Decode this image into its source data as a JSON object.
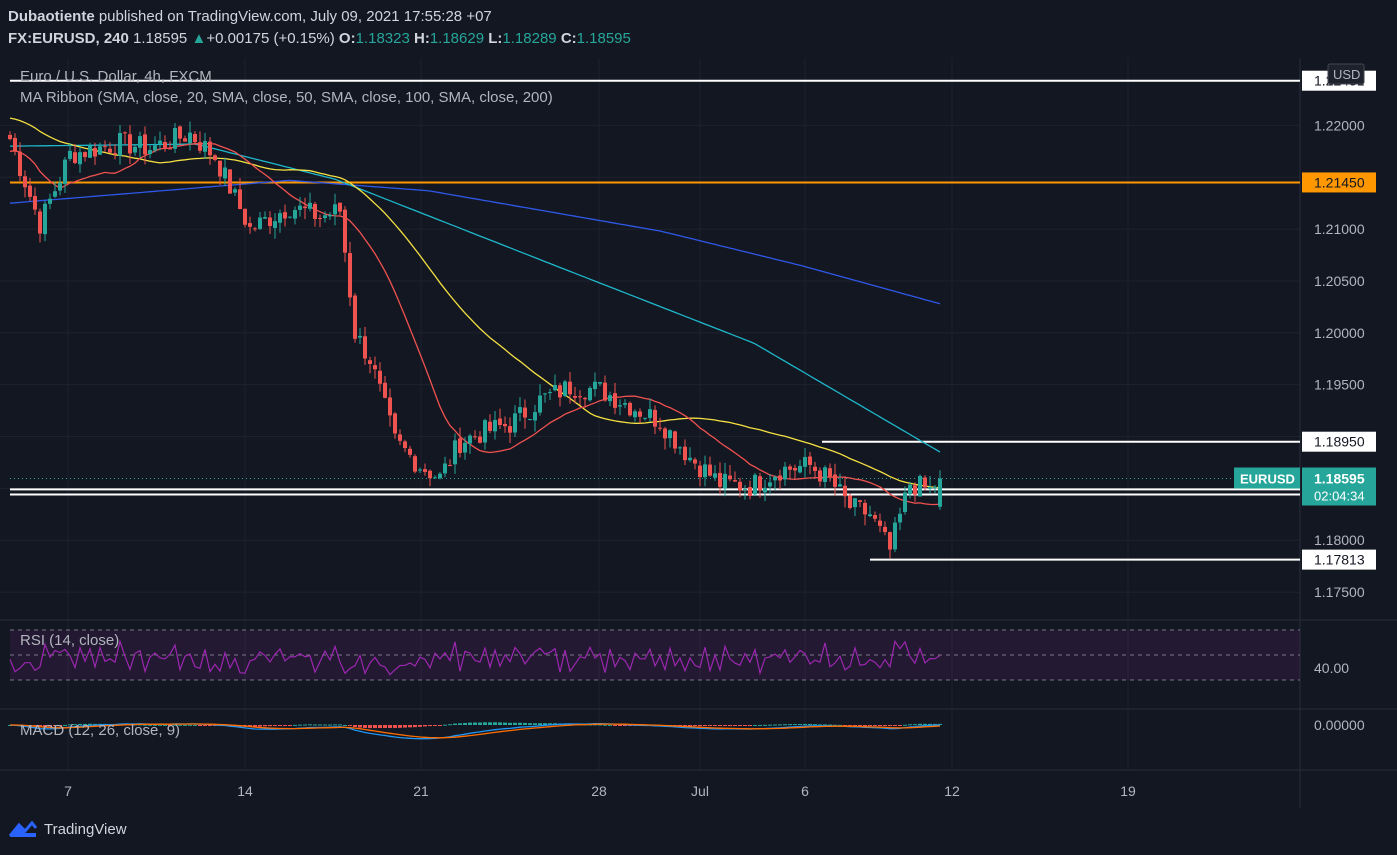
{
  "header": {
    "author": "Dubaotiente",
    "published": "published on TradingView.com, July 09, 2021 17:55:28 +07",
    "symbol": "FX:EURUSD, 240",
    "last": "1.18595",
    "change_arrow": "▲",
    "change": "+0.00175 (+0.15%)",
    "o_label": "O:",
    "o_value": "1.18323",
    "h_label": "H:",
    "h_value": "1.18629",
    "l_label": "L:",
    "l_value": "1.18289",
    "c_label": "C:",
    "c_value": "1.18595"
  },
  "legend": {
    "series_title": "Euro / U.S. Dollar, 4h, FXCM",
    "ma_ribbon": "MA Ribbon (SMA, close, 20, SMA, close, 50, SMA, close, 100, SMA, close, 200)",
    "rsi": "RSI (14, close)",
    "macd": "MACD (12, 26, close, 9)"
  },
  "price_axis": {
    "currency": "USD",
    "ticks": [
      "1.22000",
      "1.21000",
      "1.20500",
      "1.20000",
      "1.19500",
      "1.18000",
      "1.17500"
    ],
    "top_line_label": "1.22431"
  },
  "levels": [
    {
      "value": 1.22431,
      "label": "1.22431",
      "color": "#ffffff"
    },
    {
      "value": 1.2145,
      "label": "1.21450",
      "color": "#ff9800"
    },
    {
      "value": 1.1895,
      "label": "1.18950",
      "color": "#ffffff"
    },
    {
      "value": 1.1849,
      "label": "",
      "color": "#ffffff"
    },
    {
      "value": 1.18441,
      "label": "1.18441",
      "color": "#ffffff"
    },
    {
      "value": 1.17813,
      "label": "1.17813",
      "color": "#ffffff"
    }
  ],
  "current_price": {
    "symbol": "EURUSD",
    "value": "1.18595",
    "countdown": "02:04:34",
    "color": "#26a69a"
  },
  "rsi_axis": {
    "tick": "40.00"
  },
  "macd_axis": {
    "tick": "0.00000"
  },
  "time_axis": {
    "labels": [
      "7",
      "14",
      "21",
      "28",
      "Jul",
      "6",
      "12",
      "19"
    ]
  },
  "footer": {
    "brand": "TradingView"
  },
  "colors": {
    "bull": "#26a69a",
    "bear": "#ef5350",
    "ma20": "#f0524f",
    "ma50": "#f5e142",
    "ma100": "#1eb8cc",
    "ma200": "#2f58e8",
    "rsi": "#9c27b0",
    "macd": "#2196f3",
    "signal": "#ff6d00"
  },
  "chart_data": {
    "type": "candlestick",
    "title": "Euro / U.S. Dollar, 4h, FXCM",
    "ylim": [
      1.1725,
      1.2265
    ],
    "anchors": [
      {
        "t": 0,
        "p": 1.2187
      },
      {
        "t": 6,
        "p": 1.2105
      },
      {
        "t": 12,
        "p": 1.2172
      },
      {
        "t": 22,
        "p": 1.2183
      },
      {
        "t": 28,
        "p": 1.2178
      },
      {
        "t": 36,
        "p": 1.2192
      },
      {
        "t": 41,
        "p": 1.217
      },
      {
        "t": 48,
        "p": 1.21
      },
      {
        "t": 56,
        "p": 1.2122
      },
      {
        "t": 62,
        "p": 1.2112
      },
      {
        "t": 66,
        "p": 1.2118
      },
      {
        "t": 69,
        "p": 1.2
      },
      {
        "t": 72,
        "p": 1.1975
      },
      {
        "t": 77,
        "p": 1.1895
      },
      {
        "t": 82,
        "p": 1.1872
      },
      {
        "t": 86,
        "p": 1.186
      },
      {
        "t": 90,
        "p": 1.1895
      },
      {
        "t": 95,
        "p": 1.1905
      },
      {
        "t": 100,
        "p": 1.1912
      },
      {
        "t": 106,
        "p": 1.1935
      },
      {
        "t": 112,
        "p": 1.1948
      },
      {
        "t": 118,
        "p": 1.1945
      },
      {
        "t": 124,
        "p": 1.193
      },
      {
        "t": 130,
        "p": 1.1915
      },
      {
        "t": 136,
        "p": 1.188
      },
      {
        "t": 142,
        "p": 1.1855
      },
      {
        "t": 148,
        "p": 1.1852
      },
      {
        "t": 154,
        "p": 1.1868
      },
      {
        "t": 160,
        "p": 1.1872
      },
      {
        "t": 164,
        "p": 1.1858
      },
      {
        "t": 168,
        "p": 1.1832
      },
      {
        "t": 172,
        "p": 1.1825
      },
      {
        "t": 176,
        "p": 1.179
      },
      {
        "t": 180,
        "p": 1.1855
      },
      {
        "t": 184,
        "p": 1.1848
      },
      {
        "t": 186,
        "p": 1.18595
      }
    ],
    "ma_start": {
      "ma20": 1.2175,
      "ma50": 1.2207,
      "ma100": 1.218,
      "ma200": 1.2125
    },
    "ma_end": {
      "ma100": 1.1885,
      "ma200": 1.2028
    }
  }
}
